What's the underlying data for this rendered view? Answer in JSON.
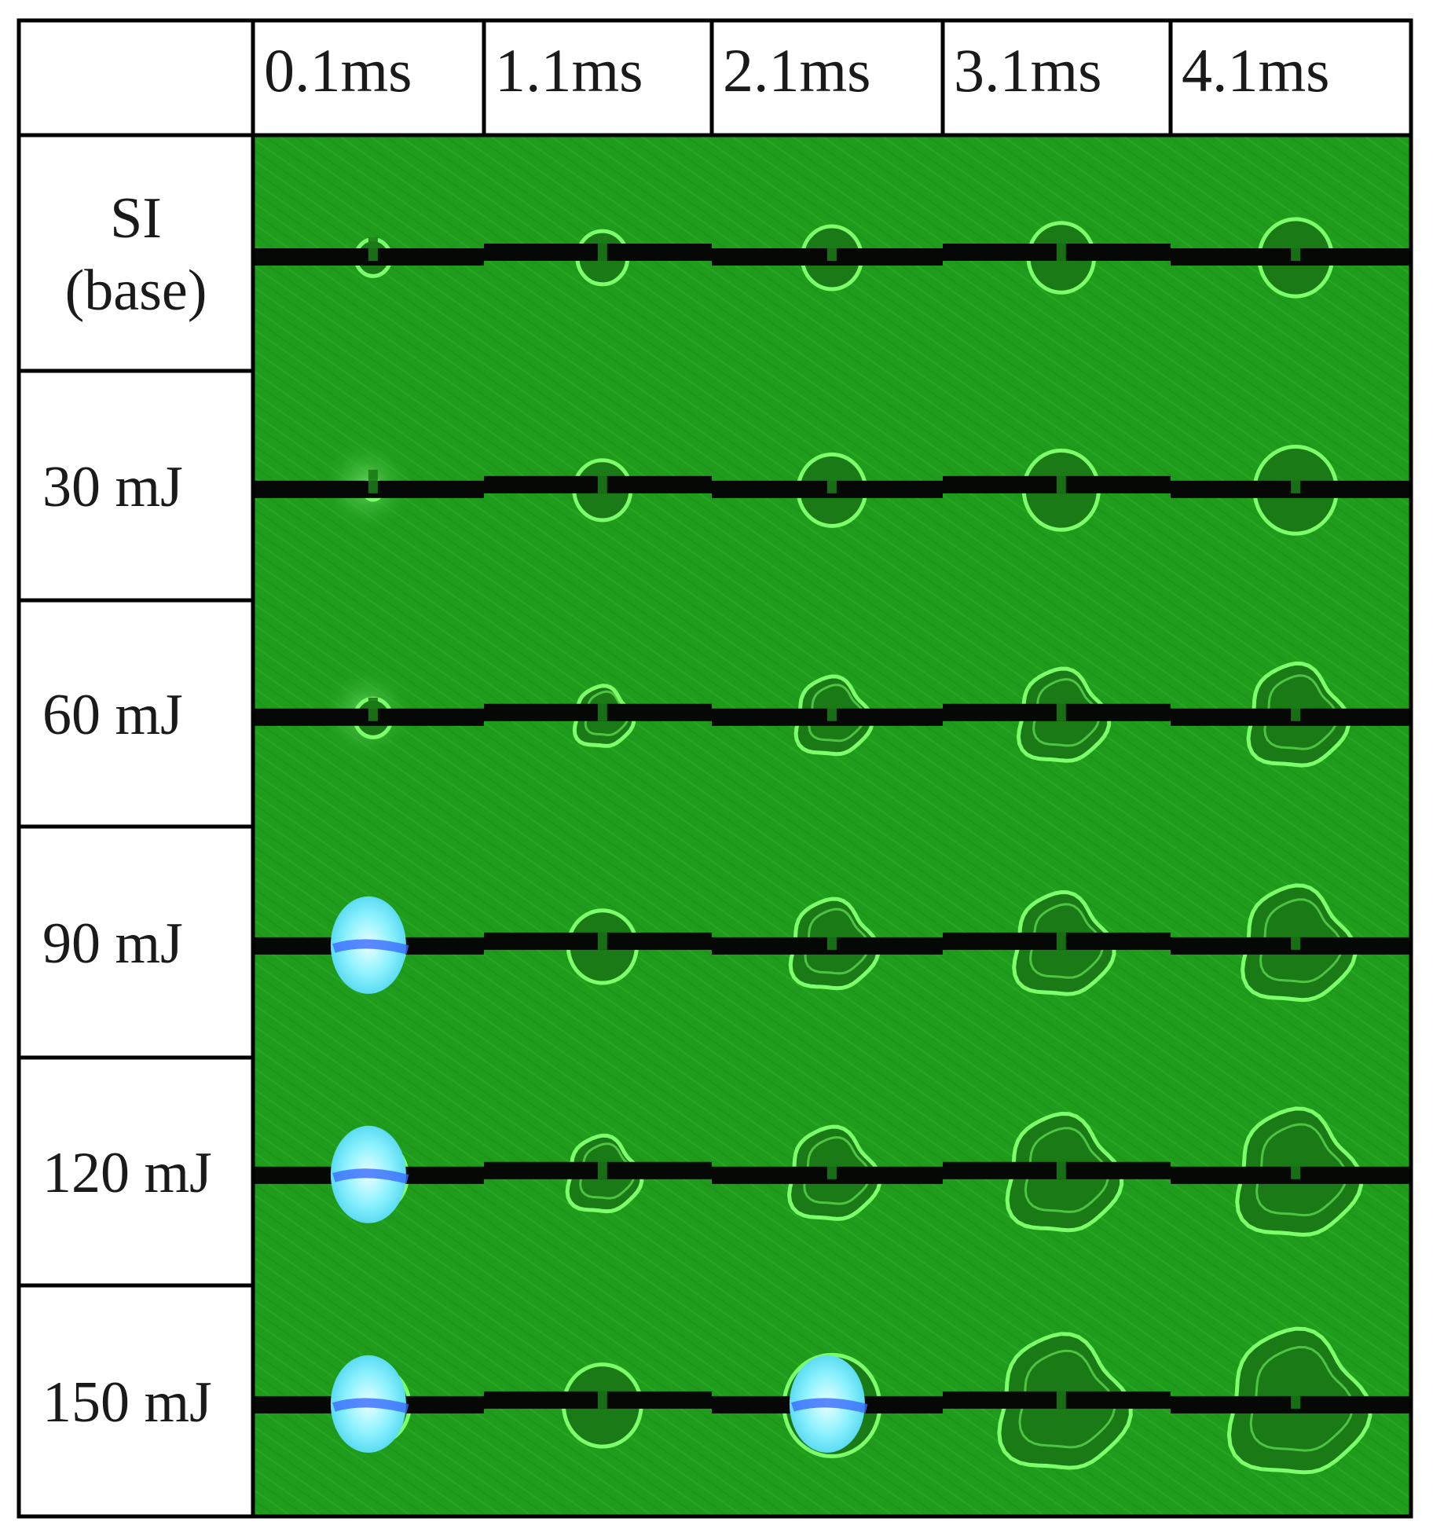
{
  "figure": {
    "time_labels": [
      "0.1ms",
      "1.1ms",
      "2.1ms",
      "3.1ms",
      "4.1ms"
    ],
    "rows": [
      {
        "label_lines": [
          "SI",
          "(base)"
        ],
        "bubble_scale": [
          0.38,
          0.55,
          0.65,
          0.72,
          0.8
        ],
        "plasma": [
          false,
          false,
          false,
          false,
          false
        ],
        "glow": [
          false,
          false,
          false,
          false,
          false
        ],
        "lobed": [
          false,
          false,
          false,
          false,
          false
        ]
      },
      {
        "label_lines": [
          "30 mJ"
        ],
        "bubble_scale": [
          0.2,
          0.62,
          0.74,
          0.82,
          0.9
        ],
        "plasma": [
          false,
          false,
          false,
          false,
          false
        ],
        "glow": [
          true,
          false,
          false,
          false,
          false
        ],
        "lobed": [
          false,
          false,
          false,
          false,
          false
        ]
      },
      {
        "label_lines": [
          "60 mJ"
        ],
        "bubble_scale": [
          0.4,
          0.62,
          0.8,
          0.95,
          1.05
        ],
        "plasma": [
          false,
          false,
          false,
          false,
          false
        ],
        "glow": [
          true,
          false,
          false,
          false,
          false
        ],
        "lobed": [
          false,
          true,
          true,
          true,
          true
        ]
      },
      {
        "label_lines": [
          "90 mJ"
        ],
        "bubble_scale": [
          0.7,
          0.75,
          0.92,
          1.05,
          1.18
        ],
        "plasma": [
          true,
          false,
          false,
          false,
          false
        ],
        "glow": [
          false,
          false,
          false,
          false,
          false
        ],
        "lobed": [
          false,
          false,
          true,
          true,
          true
        ]
      },
      {
        "label_lines": [
          "120 mJ"
        ],
        "bubble_scale": [
          0.75,
          0.78,
          0.95,
          1.2,
          1.3
        ],
        "plasma": [
          true,
          false,
          false,
          false,
          false
        ],
        "glow": [
          false,
          false,
          false,
          false,
          false
        ],
        "lobed": [
          false,
          true,
          true,
          true,
          true
        ]
      },
      {
        "label_lines": [
          "150 mJ"
        ],
        "bubble_scale": [
          0.8,
          0.85,
          1.05,
          1.38,
          1.48
        ],
        "plasma": [
          true,
          false,
          true,
          false,
          false
        ],
        "glow": [
          false,
          false,
          false,
          false,
          false
        ],
        "lobed": [
          false,
          false,
          false,
          true,
          true
        ]
      }
    ],
    "colors": {
      "background_green": "#1f9c1c",
      "grid_line": "#000000",
      "bubble_rim": "#7cff6a",
      "bubble_fill": "#197a16",
      "electrode": "#050805",
      "plasma": "#8ef2ff",
      "plasma_core": "#3a6cff"
    }
  }
}
